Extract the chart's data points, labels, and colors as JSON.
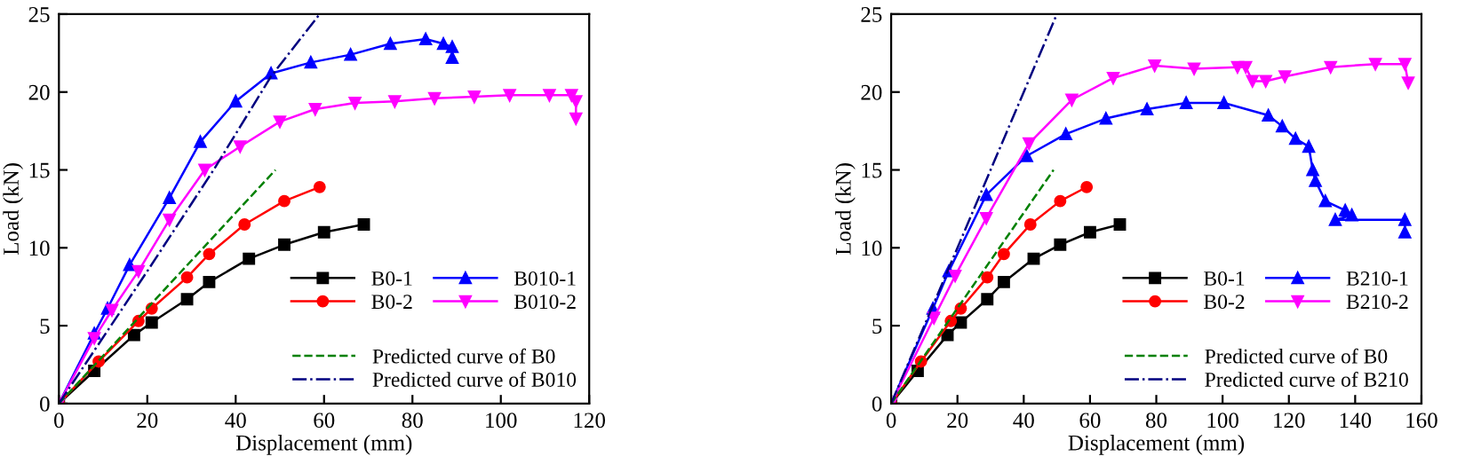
{
  "chart_data": [
    {
      "type": "line",
      "xlabel": "Displacement (mm)",
      "ylabel": "Load (kN)",
      "xlim": [
        0,
        120
      ],
      "xticks": [
        0,
        20,
        40,
        60,
        80,
        100,
        120
      ],
      "ylim": [
        0,
        25
      ],
      "yticks": [
        0,
        5,
        10,
        15,
        20,
        25
      ],
      "legend": "bottom right",
      "grid": false,
      "series": [
        {
          "name": "B0-1",
          "color": "#000000",
          "marker": "square",
          "line_style": "solid",
          "x": [
            0,
            8,
            17,
            21,
            29,
            34,
            43,
            51,
            60,
            69
          ],
          "values": [
            0,
            2.1,
            4.4,
            5.2,
            6.7,
            7.8,
            9.3,
            10.2,
            11.0,
            11.5
          ]
        },
        {
          "name": "B0-2",
          "color": "#ff0000",
          "marker": "circle",
          "line_style": "solid",
          "x": [
            0,
            9,
            18,
            21,
            29,
            34,
            42,
            51,
            59
          ],
          "values": [
            0,
            2.7,
            5.3,
            6.1,
            8.1,
            9.6,
            11.5,
            13.0,
            13.9
          ]
        },
        {
          "name": "B010-1",
          "color": "#0000ff",
          "marker": "triangle",
          "line_style": "solid",
          "x": [
            0,
            8,
            11,
            16,
            25,
            32,
            40,
            48,
            57,
            66,
            75,
            83,
            87,
            89,
            89
          ],
          "values": [
            0,
            4.5,
            6.1,
            8.9,
            13.2,
            16.8,
            19.4,
            21.2,
            21.9,
            22.4,
            23.1,
            23.4,
            23.1,
            22.9,
            22.2
          ]
        },
        {
          "name": "B010-2",
          "color": "#ff00ff",
          "marker": "triangle_down",
          "line_style": "solid",
          "x": [
            0,
            8,
            12,
            18,
            25,
            33,
            41,
            50,
            58,
            67,
            76,
            85,
            94,
            102,
            111,
            116,
            117,
            117
          ],
          "values": [
            0,
            4.2,
            6.0,
            8.5,
            11.8,
            15.0,
            16.5,
            18.1,
            18.9,
            19.3,
            19.4,
            19.6,
            19.7,
            19.8,
            19.8,
            19.8,
            19.4,
            18.3
          ]
        },
        {
          "name": "Predicted curve of B0",
          "color": "#008000",
          "marker": "none",
          "line_style": "dashed",
          "x": [
            0,
            49
          ],
          "values": [
            0,
            15
          ]
        },
        {
          "name": "Predicted curve of B010",
          "color": "#000080",
          "marker": "none",
          "line_style": "dashdot",
          "x": [
            0,
            20,
            35,
            48,
            59
          ],
          "values": [
            0,
            8.5,
            15,
            21,
            25
          ]
        }
      ]
    },
    {
      "type": "line",
      "xlabel": "Displacement (mm)",
      "ylabel": "Load (kN)",
      "xlim": [
        0,
        160
      ],
      "xticks": [
        0,
        20,
        40,
        60,
        80,
        100,
        120,
        140,
        160
      ],
      "ylim": [
        0,
        25
      ],
      "yticks": [
        0,
        5,
        10,
        15,
        20,
        25
      ],
      "legend": "bottom right",
      "grid": false,
      "series": [
        {
          "name": "B0-1",
          "color": "#000000",
          "marker": "square",
          "line_style": "solid",
          "x": [
            0,
            8,
            17,
            21,
            29,
            34,
            43,
            51,
            60,
            69
          ],
          "values": [
            0,
            2.1,
            4.4,
            5.2,
            6.7,
            7.8,
            9.3,
            10.2,
            11.0,
            11.5
          ]
        },
        {
          "name": "B0-2",
          "color": "#ff0000",
          "marker": "circle",
          "line_style": "solid",
          "x": [
            0,
            9,
            18,
            21,
            29,
            34,
            42,
            51,
            59
          ],
          "values": [
            0,
            2.7,
            5.3,
            6.1,
            8.1,
            9.6,
            11.5,
            13.0,
            13.9
          ]
        },
        {
          "name": "B210-1",
          "color": "#0000ff",
          "marker": "triangle",
          "line_style": "solid",
          "x": [
            0,
            12.6,
            17.4,
            28.7,
            40.9,
            52.7,
            64.8,
            77.2,
            89,
            100.4,
            113.8,
            118,
            122,
            126,
            127.2,
            128,
            131,
            137,
            139,
            134,
            155,
            155
          ],
          "values": [
            0,
            6.1,
            8.5,
            13.4,
            15.9,
            17.3,
            18.3,
            18.9,
            19.3,
            19.3,
            18.5,
            17.8,
            17.0,
            16.5,
            15.0,
            14.3,
            13.0,
            12.4,
            12.1,
            11.8,
            11.8,
            11.0
          ]
        },
        {
          "name": "B210-2",
          "color": "#ff00ff",
          "marker": "triangle_down",
          "line_style": "solid",
          "x": [
            0,
            12.9,
            19.3,
            28.7,
            41.6,
            54.5,
            67,
            79.5,
            91.4,
            104.5,
            107,
            109,
            113,
            118.8,
            132.6,
            146.1,
            155,
            156
          ],
          "values": [
            0,
            5.5,
            8.2,
            11.9,
            16.7,
            19.5,
            20.9,
            21.7,
            21.5,
            21.6,
            21.6,
            20.7,
            20.7,
            21.0,
            21.6,
            21.8,
            21.8,
            20.6
          ]
        },
        {
          "name": "Predicted curve of B0",
          "color": "#008000",
          "marker": "none",
          "line_style": "dashed",
          "x": [
            0,
            49
          ],
          "values": [
            0,
            15
          ]
        },
        {
          "name": "Predicted curve of B210",
          "color": "#000080",
          "marker": "none",
          "line_style": "dashdot",
          "x": [
            0,
            50
          ],
          "values": [
            0,
            25
          ]
        }
      ]
    }
  ]
}
